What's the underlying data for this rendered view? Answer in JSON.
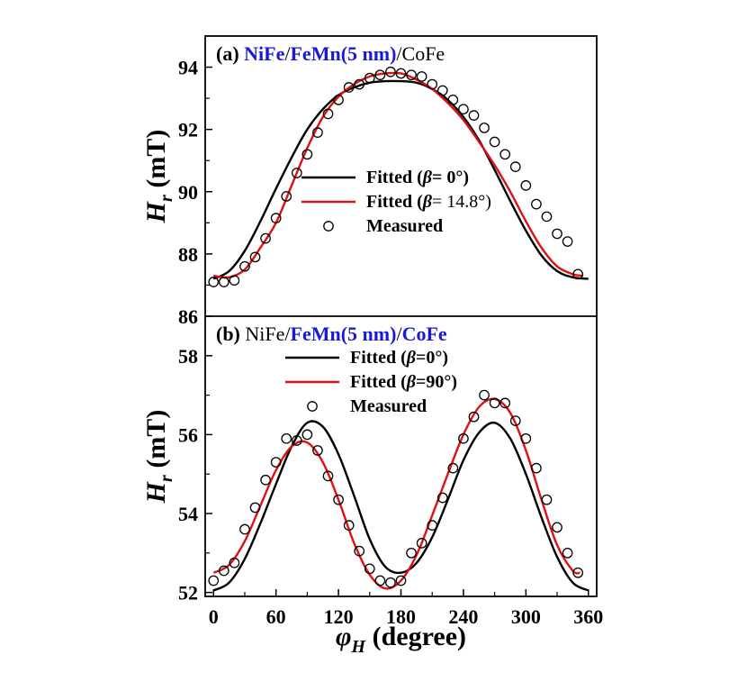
{
  "chart_data": [
    {
      "type": "line",
      "panel": "a",
      "title_parts": [
        {
          "text": "(a) ",
          "color": "#000000",
          "bold": true
        },
        {
          "text": "NiFe",
          "color": "#1a1ad6",
          "bold": true
        },
        {
          "text": "/",
          "color": "#000000",
          "bold": false
        },
        {
          "text": "FeMn(5 nm)",
          "color": "#1a1ad6",
          "bold": true
        },
        {
          "text": "/CoFe",
          "color": "#000000",
          "bold": false
        }
      ],
      "xlabel": "",
      "ylabel": "H_r (mT)",
      "ylabel_main": "H",
      "ylabel_sub": "r",
      "ylabel_unit": " (mT)",
      "xlim": [
        -8,
        368
      ],
      "ylim": [
        86,
        95
      ],
      "yticks": [
        86,
        88,
        90,
        92,
        94
      ],
      "ytick_labels": [
        "86",
        "88",
        "90",
        "92",
        "94"
      ],
      "legend": [
        {
          "name": "Fitted",
          "prefix": "Fitted (",
          "beta": "β",
          "value": "= 0°)",
          "color": "#000000",
          "kind": "line"
        },
        {
          "name": "Fitted",
          "prefix": "Fitted (",
          "beta": "β",
          "value": "= 14.8°)",
          "color": "#e01010",
          "kind": "line"
        },
        {
          "name": "Measured",
          "prefix": "Measured",
          "beta": "",
          "value": "",
          "color": "#000000",
          "kind": "marker"
        }
      ],
      "series": [
        {
          "name": "Fitted (β= 0°)",
          "color": "#000000",
          "kind": "line",
          "x": [
            0,
            15,
            30,
            45,
            60,
            75,
            90,
            105,
            120,
            135,
            150,
            165,
            180,
            195,
            210,
            225,
            240,
            255,
            270,
            285,
            300,
            315,
            330,
            345,
            360
          ],
          "y": [
            87.2,
            87.45,
            88.1,
            89.05,
            90.1,
            91.1,
            92.0,
            92.65,
            93.1,
            93.35,
            93.5,
            93.55,
            93.55,
            93.5,
            93.3,
            92.95,
            92.4,
            91.65,
            90.7,
            89.7,
            88.75,
            87.95,
            87.45,
            87.25,
            87.2
          ]
        },
        {
          "name": "Fitted (β=14.8°)",
          "color": "#e01010",
          "kind": "line",
          "x": [
            0,
            15,
            30,
            45,
            60,
            75,
            90,
            105,
            120,
            135,
            150,
            165,
            180,
            195,
            210,
            225,
            240,
            255,
            270,
            285,
            300,
            315,
            330,
            345,
            355
          ],
          "y": [
            87.3,
            87.25,
            87.5,
            88.2,
            89.0,
            90.2,
            91.4,
            92.4,
            93.05,
            93.45,
            93.7,
            93.8,
            93.8,
            93.6,
            93.3,
            92.85,
            92.3,
            91.6,
            90.85,
            90.0,
            89.05,
            88.2,
            87.6,
            87.35,
            87.3
          ]
        },
        {
          "name": "Measured",
          "color": "#000000",
          "kind": "marker",
          "x": [
            0,
            10,
            20,
            30,
            40,
            50,
            60,
            70,
            80,
            90,
            100,
            110,
            120,
            130,
            140,
            150,
            160,
            170,
            180,
            190,
            200,
            210,
            220,
            230,
            240,
            250,
            260,
            270,
            280,
            290,
            300,
            310,
            320,
            330,
            340,
            350
          ],
          "y": [
            87.1,
            87.1,
            87.15,
            87.6,
            87.9,
            88.5,
            89.15,
            89.85,
            90.6,
            91.2,
            91.9,
            92.5,
            92.95,
            93.35,
            93.45,
            93.65,
            93.75,
            93.85,
            93.8,
            93.75,
            93.7,
            93.45,
            93.25,
            92.95,
            92.65,
            92.45,
            92.05,
            91.6,
            91.2,
            90.8,
            90.2,
            89.6,
            89.2,
            88.65,
            88.4,
            87.35
          ]
        }
      ]
    },
    {
      "type": "line",
      "panel": "b",
      "title_parts": [
        {
          "text": "(b) ",
          "color": "#000000",
          "bold": true
        },
        {
          "text": "NiFe",
          "color": "#000000",
          "bold": false
        },
        {
          "text": "/",
          "color": "#000000",
          "bold": false
        },
        {
          "text": "FeMn(5 nm)",
          "color": "#1a1ad6",
          "bold": true
        },
        {
          "text": "/",
          "color": "#000000",
          "bold": false
        },
        {
          "text": "CoFe",
          "color": "#1a1ad6",
          "bold": true
        }
      ],
      "xlabel": "φ_H (degree)",
      "xlabel_main": "φ",
      "xlabel_sub": "H",
      "xlabel_unit": " (degree)",
      "ylabel": "H_r (mT)",
      "ylabel_main": "H",
      "ylabel_sub": "r",
      "ylabel_unit": " (mT)",
      "xlim": [
        -8,
        368
      ],
      "ylim": [
        51.9,
        59.0
      ],
      "xticks": [
        0,
        60,
        120,
        180,
        240,
        300,
        360
      ],
      "xtick_labels": [
        "0",
        "60",
        "120",
        "180",
        "240",
        "300",
        "360"
      ],
      "yticks": [
        52,
        54,
        56,
        58
      ],
      "ytick_labels": [
        "52",
        "54",
        "56",
        "58"
      ],
      "legend": [
        {
          "name": "Fitted",
          "prefix": "Fitted (",
          "beta": "β",
          "value": "=0°)",
          "color": "#000000",
          "kind": "line"
        },
        {
          "name": "Fitted",
          "prefix": "Fitted (",
          "beta": "β",
          "value": "=90°)",
          "color": "#e01010",
          "kind": "line"
        },
        {
          "name": "Measured",
          "prefix": "Measured",
          "beta": "",
          "value": "",
          "color": "#000000",
          "kind": "marker"
        }
      ],
      "series": [
        {
          "name": "Fitted (β=0°)",
          "color": "#000000",
          "kind": "line",
          "x": [
            0,
            15,
            30,
            45,
            60,
            75,
            90,
            105,
            120,
            135,
            150,
            165,
            180,
            195,
            210,
            225,
            240,
            255,
            270,
            285,
            300,
            315,
            330,
            345,
            360
          ],
          "y": [
            52.05,
            52.25,
            52.85,
            53.75,
            54.75,
            55.7,
            56.3,
            56.2,
            55.5,
            54.45,
            53.35,
            52.65,
            52.5,
            52.75,
            53.4,
            54.35,
            55.35,
            56.05,
            56.3,
            55.9,
            55.0,
            53.9,
            52.9,
            52.25,
            52.05
          ]
        },
        {
          "name": "Fitted (β=90°)",
          "color": "#e01010",
          "kind": "line",
          "x": [
            0,
            15,
            30,
            45,
            60,
            75,
            90,
            105,
            120,
            135,
            150,
            165,
            180,
            195,
            210,
            225,
            240,
            255,
            270,
            285,
            300,
            315,
            330,
            345,
            352
          ],
          "y": [
            52.5,
            52.7,
            53.3,
            54.2,
            55.1,
            55.7,
            55.8,
            55.3,
            54.35,
            53.25,
            52.45,
            52.1,
            52.3,
            52.95,
            53.95,
            55.0,
            56.0,
            56.7,
            56.9,
            56.55,
            55.6,
            54.35,
            53.2,
            52.55,
            52.5
          ]
        },
        {
          "name": "Measured",
          "color": "#000000",
          "kind": "marker",
          "x": [
            0,
            10,
            20,
            30,
            40,
            50,
            60,
            70,
            80,
            90,
            100,
            110,
            120,
            130,
            140,
            150,
            160,
            170,
            180,
            190,
            200,
            210,
            220,
            230,
            240,
            250,
            260,
            270,
            280,
            290,
            300,
            310,
            320,
            330,
            340,
            350
          ],
          "y": [
            52.3,
            52.55,
            52.75,
            53.6,
            54.15,
            54.85,
            55.3,
            55.9,
            55.85,
            56.0,
            55.6,
            54.95,
            54.35,
            53.7,
            53.05,
            52.6,
            52.3,
            52.25,
            52.3,
            53.0,
            53.25,
            53.7,
            54.4,
            55.15,
            55.9,
            56.45,
            57.0,
            56.8,
            56.8,
            56.35,
            55.9,
            55.15,
            54.35,
            53.65,
            53.0,
            52.5
          ]
        }
      ]
    }
  ]
}
